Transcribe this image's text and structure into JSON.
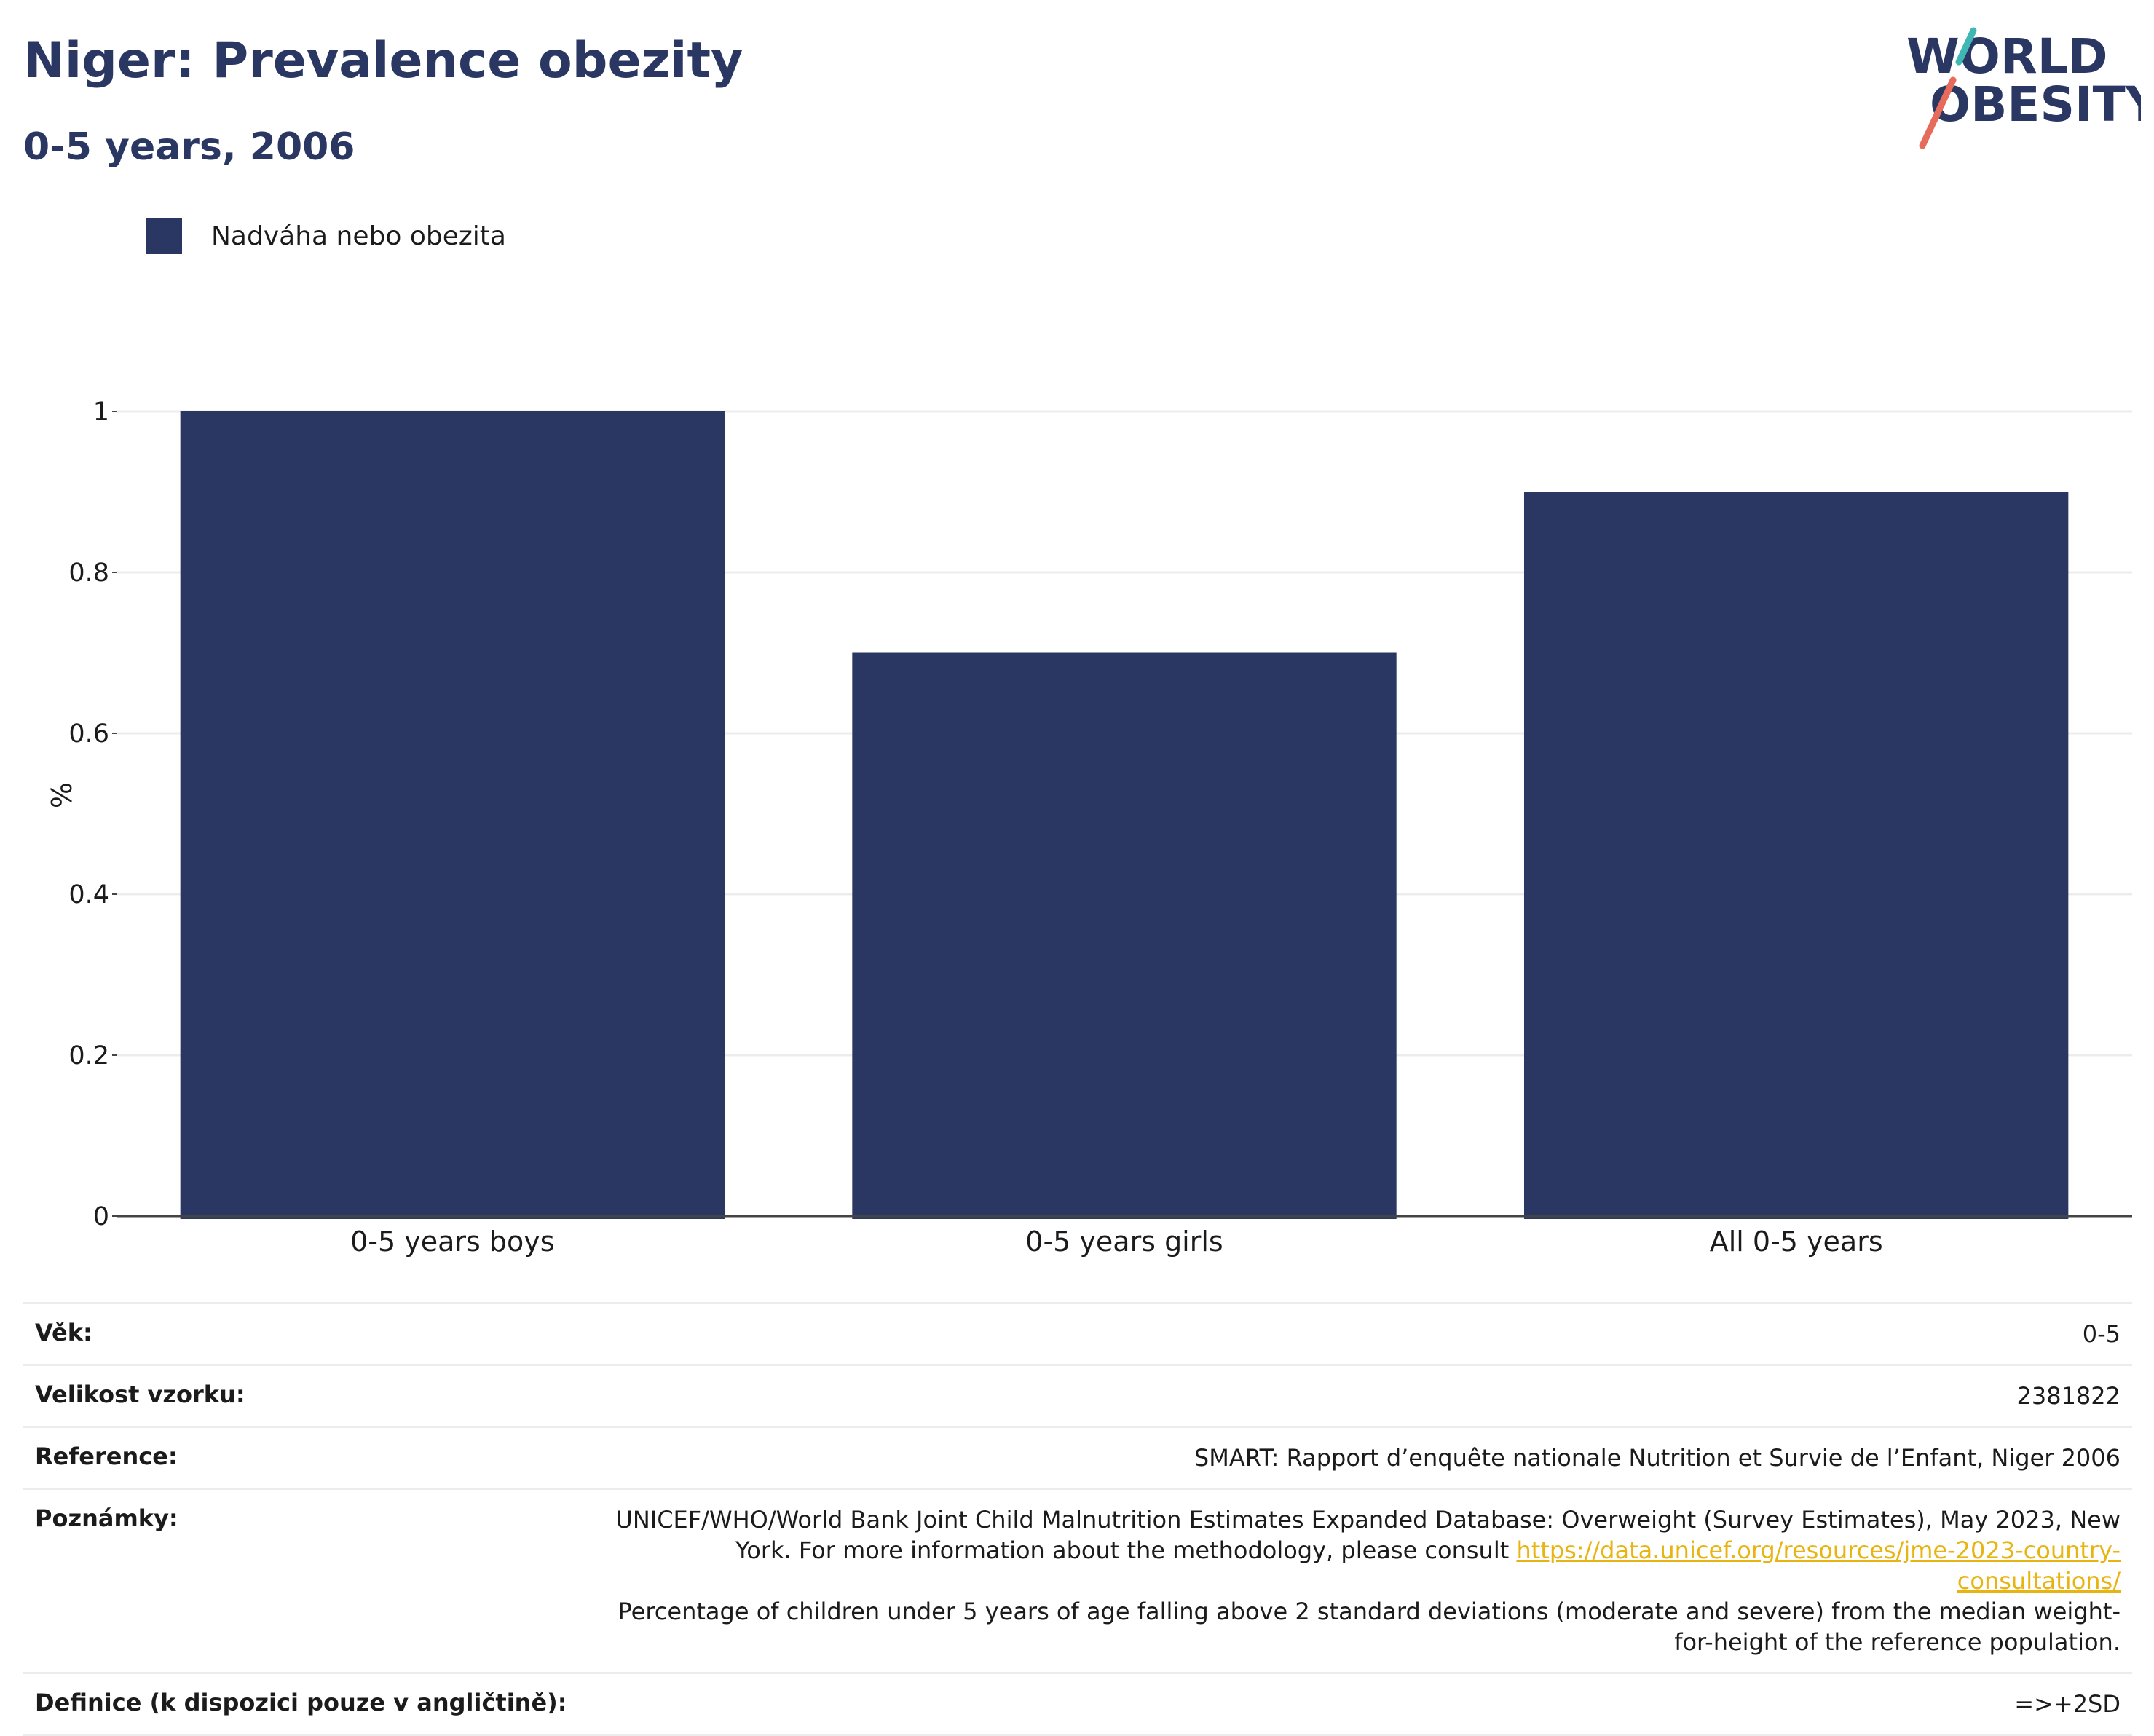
{
  "header": {
    "title": "Niger: Prevalence obezity",
    "subtitle": "0-5 years, 2006"
  },
  "logo": {
    "line1": "WORLD",
    "line2": "OBESITY"
  },
  "colors": {
    "bar": "#2b3763",
    "title": "#2b3763",
    "logo_teal": "#3fb8b5",
    "logo_coral": "#e66b5b",
    "link": "#e8b411",
    "grid": "#ececec",
    "axis": "#444444"
  },
  "chart_data": {
    "type": "bar",
    "categories": [
      "0-5 years boys",
      "0-5 years girls",
      "All 0-5 years"
    ],
    "series": [
      {
        "name": "Nadváha nebo obezita",
        "values": [
          1.0,
          0.7,
          0.9
        ]
      }
    ],
    "ylabel": "%",
    "ylim": [
      0,
      1
    ],
    "yticks": [
      "0",
      "0.2",
      "0.4",
      "0.6",
      "0.8",
      "1"
    ],
    "legend_position": "top-left",
    "grid": true
  },
  "info": {
    "rows": [
      {
        "label": "Věk:",
        "value": "0-5"
      },
      {
        "label": "Velikost vzorku:",
        "value": "2381822"
      },
      {
        "label": "Reference:",
        "value": "SMART: Rapport d’enquête nationale Nutrition et Survie de l’Enfant, Niger 2006"
      },
      {
        "label": "Poznámky:",
        "value": ""
      },
      {
        "label": "Definice (k dispozici pouze v angličtině):",
        "value": "=>+2SD"
      }
    ],
    "notes": {
      "before_link": "UNICEF/WHO/World Bank Joint Child Malnutrition Estimates Expanded Database: Overweight (Survey Estimates), May 2023, New York. For more information about the methodology, please consult ",
      "link_text": "https://data.unicef.org/resources/jme-2023-country-consultations/",
      "after_link": "Percentage of children under 5 years of age falling above 2 standard deviations (moderate and severe) from the median weight-for-height of the reference population."
    }
  }
}
